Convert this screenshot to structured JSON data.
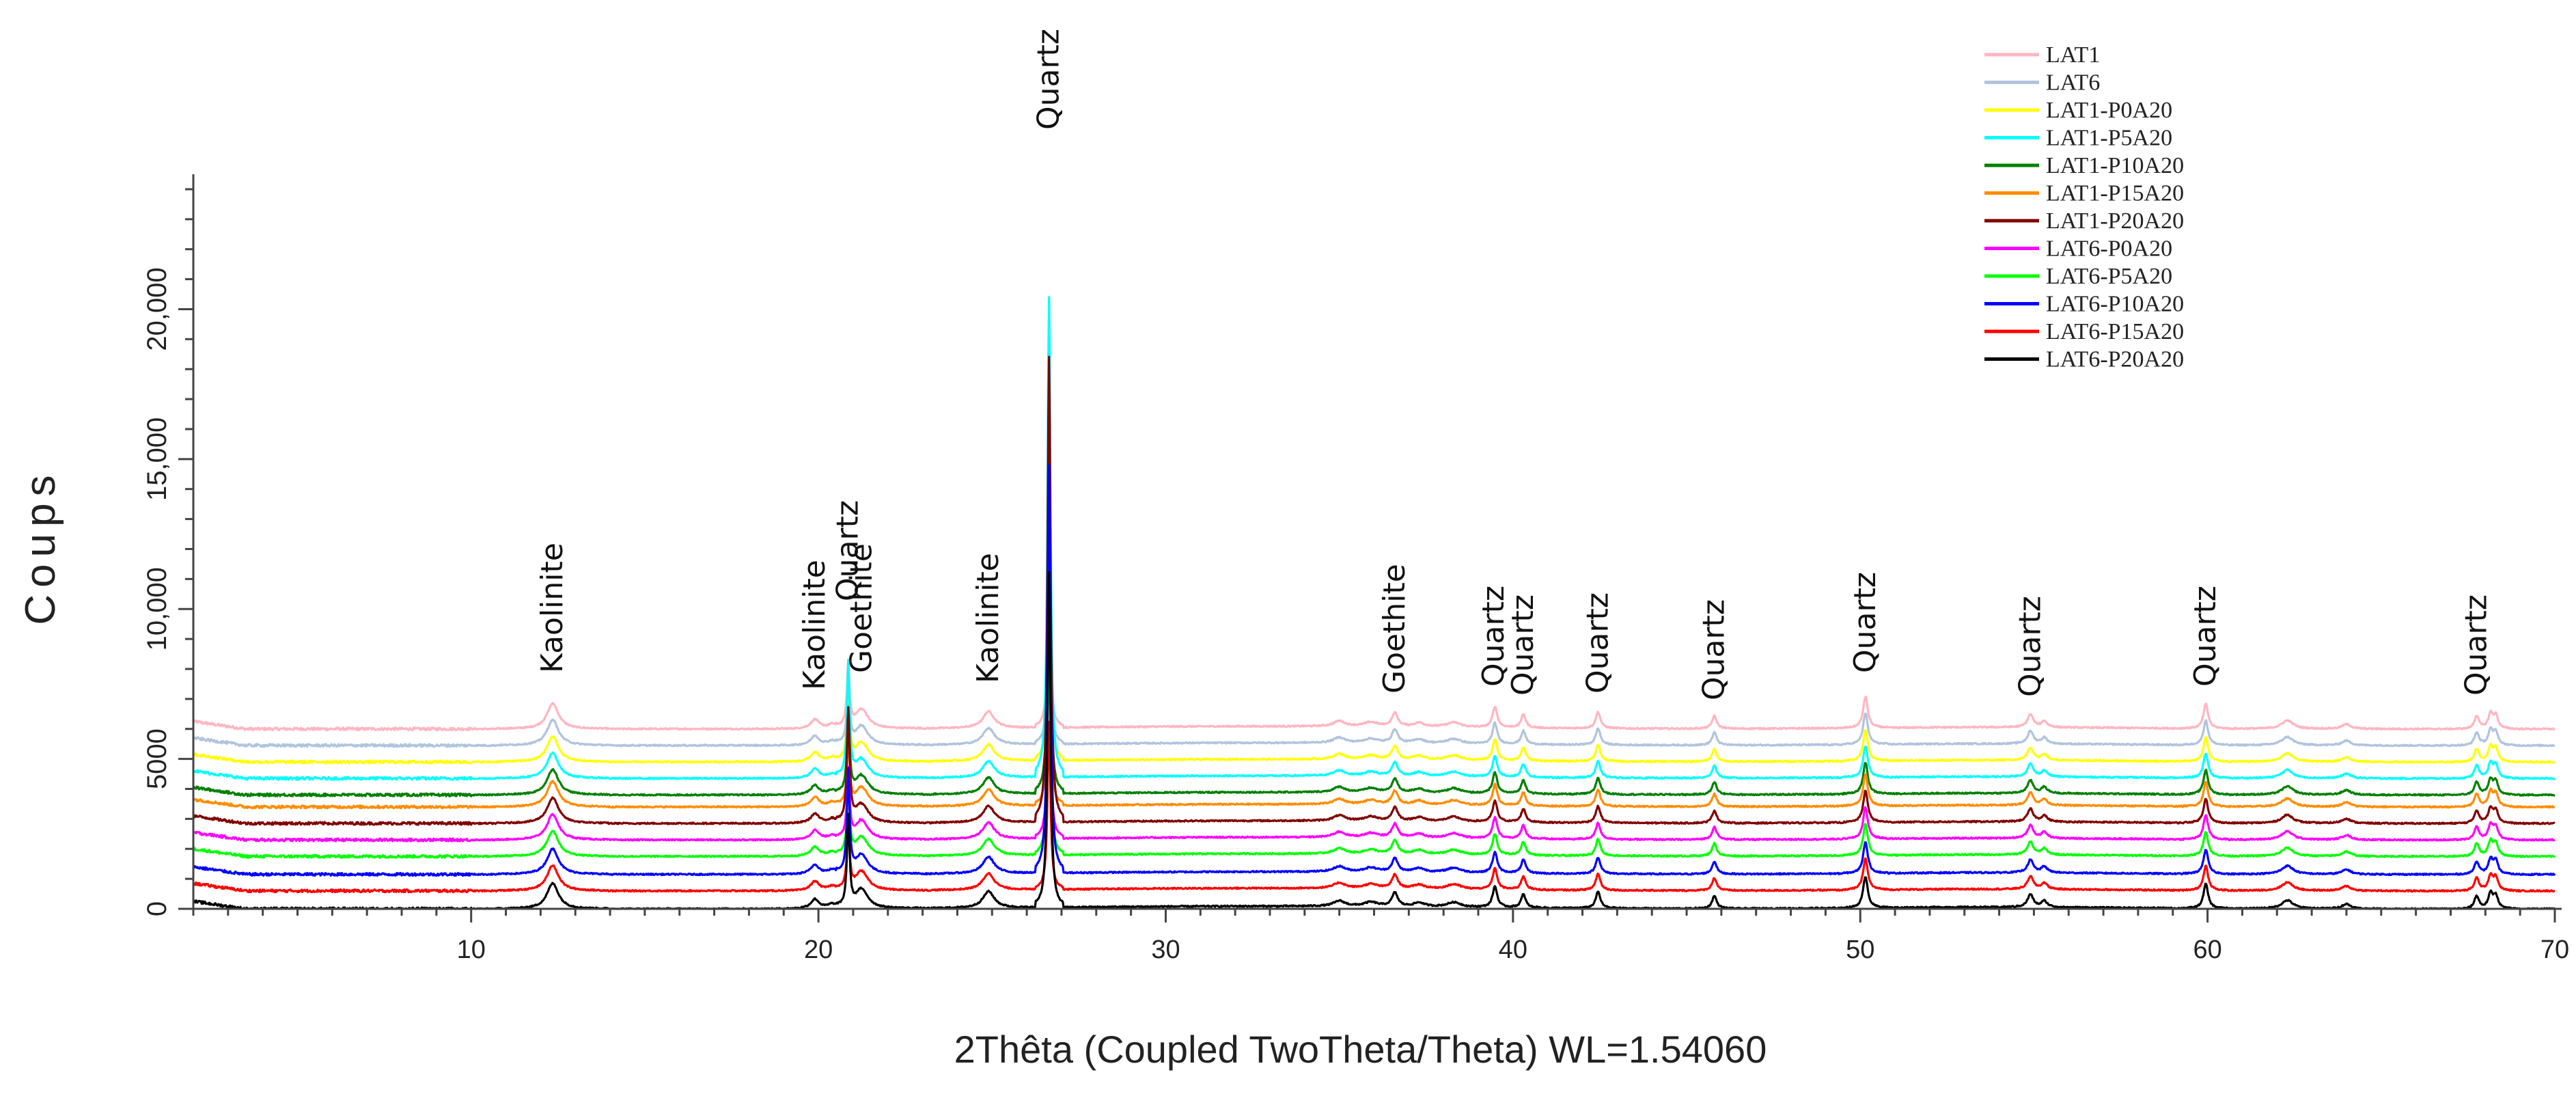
{
  "chart_data": {
    "type": "line",
    "xlabel": "2Thêta (Coupled TwoTheta/Theta) WL=1.54060",
    "ylabel": "Coups",
    "xlim": [
      2,
      70
    ],
    "ylim": [
      0,
      24500
    ],
    "x_ticks": [
      10,
      20,
      30,
      40,
      50,
      60,
      70
    ],
    "y_ticks": [
      {
        "value": 0,
        "label": "0"
      },
      {
        "value": 5000,
        "label": "5000"
      },
      {
        "value": 10000,
        "label": "10,000"
      },
      {
        "value": 15000,
        "label": "15,000"
      },
      {
        "value": 20000,
        "label": "20,000"
      }
    ],
    "legend_position": "top-right",
    "series": [
      {
        "name": "LAT1",
        "color": "#ffb6c1",
        "offset": 6000,
        "scale": 0.35
      },
      {
        "name": "LAT6",
        "color": "#b0c4de",
        "offset": 5450,
        "scale": 0.35
      },
      {
        "name": "LAT1-P0A20",
        "color": "#ffff00",
        "offset": 4900,
        "scale": 0.45
      },
      {
        "name": "LAT1-P5A20",
        "color": "#00ffff",
        "offset": 4350,
        "scale": 1.0
      },
      {
        "name": "LAT1-P10A20",
        "color": "#008000",
        "offset": 3800,
        "scale": 0.6
      },
      {
        "name": "LAT1-P15A20",
        "color": "#ff8c00",
        "offset": 3400,
        "scale": 0.4
      },
      {
        "name": "LAT1-P20A20",
        "color": "#800000",
        "offset": 2850,
        "scale": 0.97
      },
      {
        "name": "LAT6-P0A20",
        "color": "#ff00ff",
        "offset": 2300,
        "scale": 0.4
      },
      {
        "name": "LAT6-P5A20",
        "color": "#00ff00",
        "offset": 1750,
        "scale": 0.45
      },
      {
        "name": "LAT6-P10A20",
        "color": "#0000ff",
        "offset": 1150,
        "scale": 0.85
      },
      {
        "name": "LAT6-P15A20",
        "color": "#ff0000",
        "offset": 600,
        "scale": 0.35
      },
      {
        "name": "LAT6-P20A20",
        "color": "#000000",
        "offset": 0,
        "scale": 0.7
      }
    ],
    "peaks": [
      {
        "x": 12.35,
        "label": "Kaolinite"
      },
      {
        "x": 19.9,
        "label": "Kaolinite"
      },
      {
        "x": 20.85,
        "label": "Quartz"
      },
      {
        "x": 21.25,
        "label": "Goethite"
      },
      {
        "x": 24.9,
        "label": "Kaolinite"
      },
      {
        "x": 26.64,
        "label": "Quartz"
      },
      {
        "x": 36.6,
        "label": "Goethite"
      },
      {
        "x": 39.45,
        "label": "Quartz"
      },
      {
        "x": 40.3,
        "label": "Quartz"
      },
      {
        "x": 42.45,
        "label": "Quartz"
      },
      {
        "x": 45.8,
        "label": "Quartz"
      },
      {
        "x": 50.15,
        "label": "Quartz"
      },
      {
        "x": 54.9,
        "label": "Quartz"
      },
      {
        "x": 59.95,
        "label": "Quartz"
      },
      {
        "x": 67.75,
        "label": "Quartz"
      }
    ]
  }
}
